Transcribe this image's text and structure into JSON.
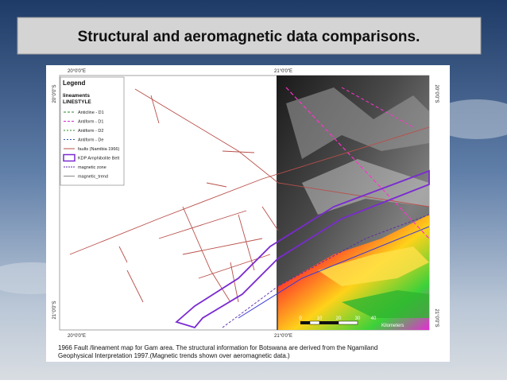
{
  "slide": {
    "title": "Structural and aeromagnetic data comparisons."
  },
  "map": {
    "top_labels": [
      "20°0'0\"E",
      "21°0'0\"E"
    ],
    "bottom_labels": [
      "20°0'0\"E",
      "21°0'0\"E"
    ],
    "left_labels": [
      "20°0'0\"S",
      "21°0'0\"S"
    ],
    "right_labels": [
      "20°0'0\"S",
      "21°0'0\"S"
    ],
    "legend": {
      "title": "Legend",
      "group": "lineaments",
      "subgroup": "LINESTYLE",
      "items": [
        "Anticline - D1",
        "Antiform - D1",
        "Antiform - D2",
        "Antiform - De",
        "faults (Namibia 1966)",
        "KDP Amphibolite Belt",
        "magnetic zone",
        "magnetic_trend"
      ]
    },
    "scale": {
      "ticks": [
        "0",
        "10",
        "20",
        "30",
        "40"
      ],
      "unit": "Kilometers"
    },
    "caption": [
      "1966 Fault /lineament map for Gam area. The structural information for Botswana are derived from the Ngamiland",
      "Geophysical Interpretation 1997.(Magnetic trends shown over aeromagnetic data.)"
    ]
  }
}
